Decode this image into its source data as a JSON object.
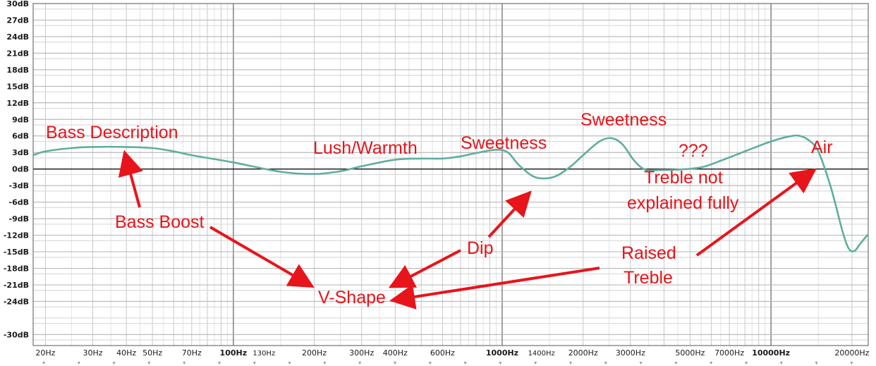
{
  "chart_data": {
    "type": "line",
    "x_scale": "log",
    "grid": true,
    "xlim": [
      18,
      23000
    ],
    "ylim": [
      -32,
      30
    ],
    "y_ticks": [
      {
        "v": 30,
        "label": "30dB"
      },
      {
        "v": 27,
        "label": "27dB"
      },
      {
        "v": 24,
        "label": "24dB"
      },
      {
        "v": 21,
        "label": "21dB"
      },
      {
        "v": 18,
        "label": "18dB"
      },
      {
        "v": 15,
        "label": "15dB"
      },
      {
        "v": 12,
        "label": "12dB"
      },
      {
        "v": 9,
        "label": "9dB"
      },
      {
        "v": 6,
        "label": "6dB"
      },
      {
        "v": 3,
        "label": "3dB"
      },
      {
        "v": 0,
        "label": "0dB"
      },
      {
        "v": -3,
        "label": "-3dB"
      },
      {
        "v": -6,
        "label": "-6dB"
      },
      {
        "v": -9,
        "label": "-9dB"
      },
      {
        "v": -12,
        "label": "-12dB"
      },
      {
        "v": -15,
        "label": "-15dB"
      },
      {
        "v": -18,
        "label": "-18dB"
      },
      {
        "v": -21,
        "label": "-21dB"
      },
      {
        "v": -24,
        "label": "-24dB"
      },
      {
        "v": -30,
        "label": "-30dB"
      }
    ],
    "x_ticks": [
      {
        "v": 20,
        "label": "20Hz"
      },
      {
        "v": 30,
        "label": "30Hz"
      },
      {
        "v": 40,
        "label": "40Hz"
      },
      {
        "v": 50,
        "label": "50Hz"
      },
      {
        "v": 70,
        "label": "70Hz"
      },
      {
        "v": 100,
        "label": "100Hz",
        "major": true
      },
      {
        "v": 130,
        "label": "130Hz",
        "small": true
      },
      {
        "v": 200,
        "label": "200Hz"
      },
      {
        "v": 300,
        "label": "300Hz"
      },
      {
        "v": 400,
        "label": "400Hz"
      },
      {
        "v": 600,
        "label": "600Hz"
      },
      {
        "v": 1000,
        "label": "1000Hz",
        "major": true
      },
      {
        "v": 1400,
        "label": "1400Hz",
        "small": true
      },
      {
        "v": 2000,
        "label": "2000Hz"
      },
      {
        "v": 3000,
        "label": "3000Hz"
      },
      {
        "v": 5000,
        "label": "5000Hz"
      },
      {
        "v": 7000,
        "label": "7000Hz"
      },
      {
        "v": 10000,
        "label": "10000Hz",
        "major": true
      },
      {
        "v": 20000,
        "label": "20000Hz"
      }
    ],
    "series": [
      {
        "color": "#5fae9e",
        "x": [
          18,
          20,
          25,
          30,
          40,
          50,
          60,
          70,
          100,
          150,
          200,
          250,
          300,
          400,
          500,
          600,
          700,
          800,
          950,
          1050,
          1150,
          1300,
          1450,
          1600,
          1800,
          2000,
          2300,
          2550,
          2800,
          3100,
          3400,
          3800,
          4500,
          5500,
          6500,
          8000,
          10000,
          12000,
          13000,
          14000,
          15000,
          16500,
          17500,
          18500,
          19500,
          20500,
          21500,
          23000
        ],
        "y": [
          2.5,
          3.2,
          3.8,
          4.0,
          4.0,
          3.8,
          3.2,
          2.5,
          1.2,
          -0.5,
          -0.9,
          -0.4,
          0.5,
          1.7,
          1.9,
          1.9,
          2.3,
          2.9,
          3.5,
          3.0,
          0.8,
          -1.3,
          -1.7,
          -1.2,
          0.5,
          2.5,
          5.0,
          5.6,
          4.5,
          1.5,
          -0.1,
          -0.2,
          -0.1,
          0.3,
          1.5,
          3.2,
          5.0,
          6.0,
          5.9,
          5.0,
          3.2,
          -2.5,
          -7.0,
          -11.5,
          -14.5,
          -14.8,
          -13.5,
          -11.8
        ]
      }
    ],
    "annotations": [
      {
        "id": "bass-description",
        "text": "Bass Description"
      },
      {
        "id": "lush-warmth",
        "text": "Lush/Warmth"
      },
      {
        "id": "sweetness-1",
        "text": "Sweetness"
      },
      {
        "id": "sweetness-2",
        "text": "Sweetness"
      },
      {
        "id": "question-marks",
        "text": "???"
      },
      {
        "id": "air",
        "text": "Air"
      },
      {
        "id": "treble-not-explained-1",
        "text": "Treble not"
      },
      {
        "id": "treble-not-explained-2",
        "text": "explained fully"
      },
      {
        "id": "bass-boost",
        "text": "Bass Boost"
      },
      {
        "id": "dip",
        "text": "Dip"
      },
      {
        "id": "raised-treble-1",
        "text": "Raised"
      },
      {
        "id": "raised-treble-2",
        "text": "Treble"
      },
      {
        "id": "v-shape",
        "text": "V-Shape"
      }
    ]
  }
}
